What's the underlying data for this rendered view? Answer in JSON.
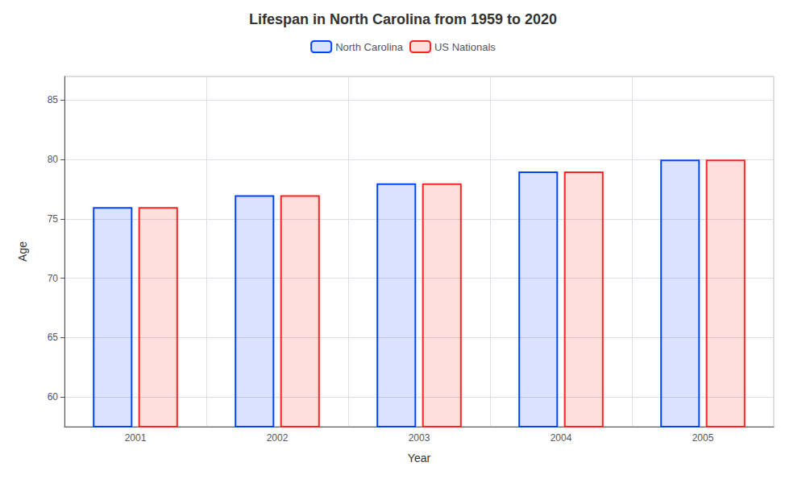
{
  "chart_data": {
    "type": "bar",
    "title": "Lifespan in North Carolina from 1959 to 2020",
    "xlabel": "Year",
    "ylabel": "Age",
    "categories": [
      "2001",
      "2002",
      "2003",
      "2004",
      "2005"
    ],
    "series": [
      {
        "name": "North Carolina",
        "color": "#0044ff",
        "values": [
          76,
          77,
          78,
          79,
          80
        ]
      },
      {
        "name": "US Nationals",
        "color": "#ff2222",
        "values": [
          76,
          77,
          78,
          79,
          80
        ]
      }
    ],
    "ylim": [
      57.5,
      87
    ],
    "yticks": [
      60,
      65,
      70,
      75,
      80,
      85
    ],
    "grid": true,
    "legend": "top"
  }
}
